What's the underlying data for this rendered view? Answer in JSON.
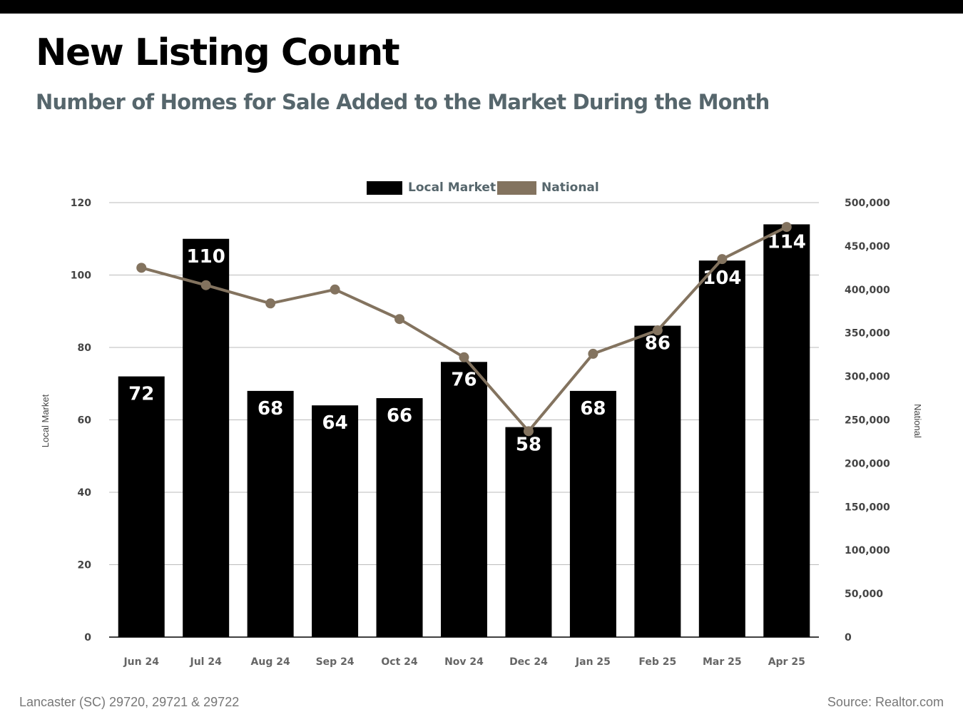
{
  "title": "New Listing Count",
  "subtitle": "Number of Homes for Sale Added to the Market During the Month",
  "footer": {
    "location": "Lancaster (SC) 29720, 29721 & 29722",
    "source": "Source: Realtor.com"
  },
  "colors": {
    "local_bar": "#000000",
    "national_line": "#83735f",
    "label_text": "#56666c",
    "grid": "#bbbbbb"
  },
  "chart_data": {
    "type": "bar",
    "categories": [
      "Jun 24",
      "Jul 24",
      "Aug 24",
      "Sep 24",
      "Oct 24",
      "Nov 24",
      "Dec 24",
      "Jan 25",
      "Feb 25",
      "Mar 25",
      "Apr 25"
    ],
    "series": [
      {
        "name": "Local Market",
        "type": "bar",
        "axis": "left",
        "values": [
          72,
          110,
          68,
          64,
          66,
          76,
          58,
          68,
          86,
          104,
          114
        ]
      },
      {
        "name": "National",
        "type": "line",
        "axis": "right",
        "values": [
          425000,
          405000,
          384000,
          400000,
          366000,
          322000,
          237000,
          326000,
          353000,
          435000,
          472000
        ]
      }
    ],
    "ylabel": "Local Market",
    "y2label": "National",
    "ylim": [
      0,
      120
    ],
    "yticks": [
      "0",
      "20",
      "40",
      "60",
      "80",
      "100",
      "120"
    ],
    "y2lim": [
      0,
      500000
    ],
    "y2ticks": [
      "0",
      "50,000",
      "100,000",
      "150,000",
      "200,000",
      "250,000",
      "300,000",
      "350,000",
      "400,000",
      "450,000",
      "500,000"
    ],
    "grid": true,
    "legend": "top-center"
  }
}
